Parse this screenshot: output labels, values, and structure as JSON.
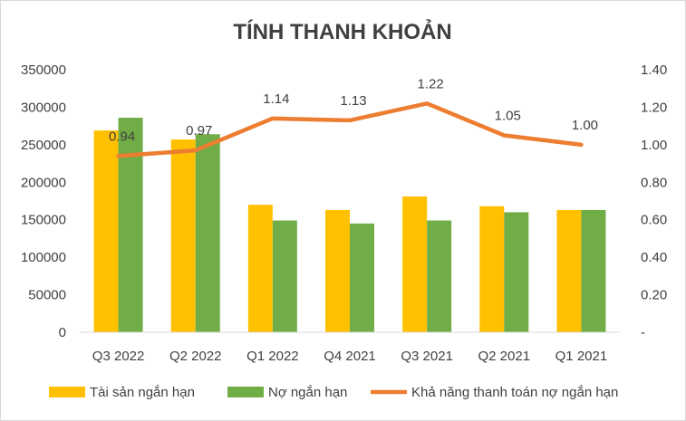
{
  "chart_data": {
    "type": "bar",
    "title": "TÍNH THANH KHOẢN",
    "categories": [
      "Q3 2022",
      "Q2 2022",
      "Q1 2022",
      "Q4 2021",
      "Q3 2021",
      "Q2 2021",
      "Q1 2021"
    ],
    "series": [
      {
        "name": "Tài sản ngắn hạn",
        "type": "bar",
        "axis": "left",
        "color": "#FFC000",
        "values": [
          269000,
          257000,
          170000,
          163000,
          181000,
          168000,
          163000
        ]
      },
      {
        "name": "Nợ ngắn hạn",
        "type": "bar",
        "axis": "left",
        "color": "#70AD47",
        "values": [
          286000,
          264000,
          149000,
          145000,
          149000,
          160000,
          163000
        ]
      },
      {
        "name": "Khả năng thanh toán nợ ngắn hạn",
        "type": "line",
        "axis": "right",
        "color": "#ED7D31",
        "values": [
          0.94,
          0.97,
          1.14,
          1.13,
          1.22,
          1.05,
          1.0
        ],
        "labels": [
          "0.94",
          "0.97",
          "1.14",
          "1.13",
          "1.22",
          "1.05",
          "1.00"
        ]
      }
    ],
    "y_left": {
      "ylim": [
        0,
        350000
      ],
      "ticks": [
        "0",
        "50000",
        "100000",
        "150000",
        "200000",
        "250000",
        "300000",
        "350000"
      ]
    },
    "y_right": {
      "ylim": [
        0,
        1.4
      ],
      "ticks": [
        "-",
        "0.20",
        "0.40",
        "0.60",
        "0.80",
        "1.00",
        "1.20",
        "1.40"
      ]
    },
    "grid": false,
    "legend_position": "bottom"
  }
}
